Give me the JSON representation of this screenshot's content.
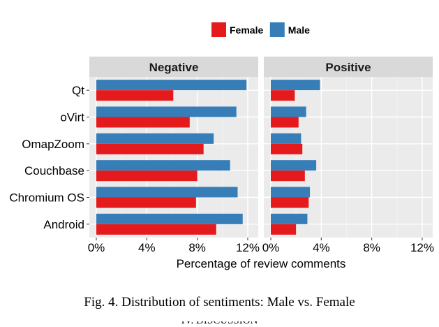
{
  "chart_data": {
    "type": "bar",
    "orientation": "horizontal",
    "facets": [
      "Negative",
      "Positive"
    ],
    "categories": [
      "Qt",
      "oVirt",
      "OmapZoom",
      "Couchbase",
      "Chromium OS",
      "Android"
    ],
    "series": [
      {
        "name": "Female",
        "color": "#e41a1c",
        "values": {
          "Negative": [
            6.1,
            7.4,
            8.5,
            8.0,
            7.9,
            9.5
          ],
          "Positive": [
            1.9,
            2.2,
            2.5,
            2.7,
            3.0,
            2.0
          ]
        }
      },
      {
        "name": "Male",
        "color": "#377eb8",
        "values": {
          "Negative": [
            11.9,
            11.1,
            9.3,
            10.6,
            11.2,
            11.6
          ],
          "Positive": [
            3.9,
            2.8,
            2.4,
            3.6,
            3.1,
            2.9
          ]
        }
      }
    ],
    "xlabel": "Percentage of review comments",
    "ylabel": "",
    "xlim": [
      0,
      12.5
    ],
    "xticks": [
      "0%",
      "4%",
      "8%",
      "12%"
    ],
    "legend_position": "top",
    "grid": true
  },
  "caption": "Fig. 4.   Distribution of sentiments: Male vs. Female",
  "footer_fragment": "IV. DISCUSSION"
}
